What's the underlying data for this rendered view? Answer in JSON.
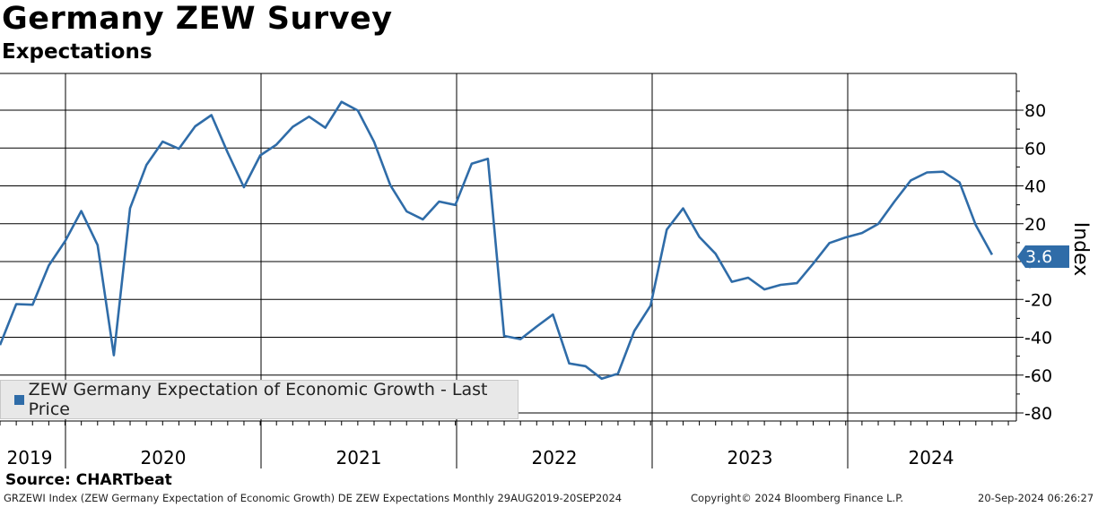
{
  "header": {
    "title": "Germany ZEW Survey",
    "subtitle": "Expectations"
  },
  "legend": {
    "label": "ZEW Germany Expectation of Economic Growth - Last Price",
    "color": "#2f6ca8"
  },
  "footer": {
    "source": "Source: CHARTbeat",
    "description": "GRZEWI Index (ZEW Germany Expectation of Economic Growth) DE ZEW Expectations  Monthly 29AUG2019-20SEP2024",
    "copyright": "Copyright© 2024 Bloomberg Finance L.P.",
    "timestamp": "20-Sep-2024 06:26:27"
  },
  "chart_data": {
    "type": "line",
    "title": "Germany ZEW Survey",
    "subtitle": "Expectations",
    "ylabel": "Index",
    "xlabel": "",
    "ylim": [
      -90,
      100
    ],
    "yticks": [
      -80,
      -60,
      -40,
      -20,
      0,
      20,
      40,
      60,
      80
    ],
    "ytick_labels": [
      "-80",
      "-60",
      "-40",
      "-20",
      "0",
      "20",
      "40",
      "60",
      "80"
    ],
    "x_year_labels": [
      "2019",
      "2020",
      "2021",
      "2022",
      "2023",
      "2024"
    ],
    "last_value_label": "3.6",
    "line_color": "#2f6ca8",
    "series": [
      {
        "name": "ZEW Germany Expectation of Economic Growth - Last Price",
        "start": "2019-08",
        "values": [
          -44.1,
          -22.5,
          -22.8,
          -2.1,
          10.7,
          26.7,
          8.7,
          -49.5,
          28.2,
          51.0,
          63.4,
          59.6,
          71.5,
          77.4,
          57.6,
          39.3,
          56.1,
          61.8,
          71.2,
          76.6,
          70.7,
          84.4,
          79.8,
          63.3,
          40.4,
          26.5,
          22.3,
          31.7,
          29.9,
          51.7,
          54.3,
          -39.3,
          -41.0,
          -34.3,
          -28.0,
          -53.8,
          -55.3,
          -61.9,
          -59.2,
          -36.7,
          -23.3,
          16.9,
          28.1,
          13.0,
          4.1,
          -10.7,
          -8.5,
          -14.7,
          -12.3,
          -11.4,
          -1.1,
          9.8,
          12.8,
          15.1,
          19.9,
          31.7,
          42.9,
          47.1,
          47.5,
          41.8,
          19.2,
          3.6
        ]
      }
    ]
  }
}
